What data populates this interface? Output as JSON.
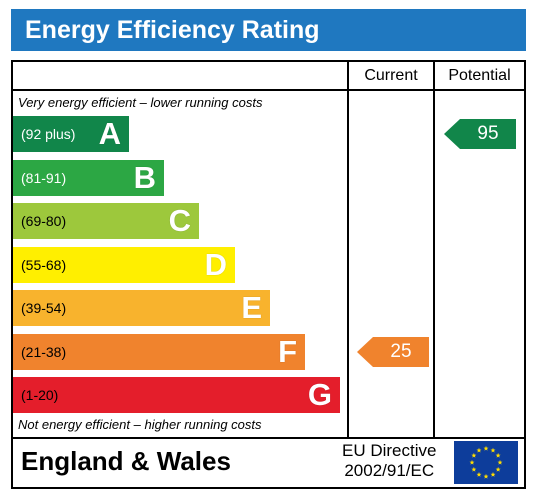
{
  "title": "Energy Efficiency Rating",
  "columns": {
    "current": "Current",
    "potential": "Potential"
  },
  "notes": {
    "top": "Very energy efficient – lower running costs",
    "bottom": "Not energy efficient – higher running costs"
  },
  "footer": {
    "region": "England & Wales",
    "directive_line1": "EU Directive",
    "directive_line2": "2002/91/EC",
    "flag_icon": "eu-flag-icon"
  },
  "colors": {
    "title_bar": "#1f78c0",
    "current_arrow": "#f0832d",
    "potential_arrow": "#11864a"
  },
  "chart_data": {
    "type": "bar",
    "categories": [
      "A",
      "B",
      "C",
      "D",
      "E",
      "F",
      "G"
    ],
    "bands": [
      {
        "letter": "A",
        "range": "(92 plus)",
        "min": 92,
        "max": null,
        "color": "#11864a",
        "range_color": "#ffffff"
      },
      {
        "letter": "B",
        "range": "(81-91)",
        "min": 81,
        "max": 91,
        "color": "#2ca744",
        "range_color": "#ffffff"
      },
      {
        "letter": "C",
        "range": "(69-80)",
        "min": 69,
        "max": 80,
        "color": "#9dc83c",
        "range_color": "#000000"
      },
      {
        "letter": "D",
        "range": "(55-68)",
        "min": 55,
        "max": 68,
        "color": "#ffef00",
        "range_color": "#000000"
      },
      {
        "letter": "E",
        "range": "(39-54)",
        "min": 39,
        "max": 54,
        "color": "#f8b32d",
        "range_color": "#000000"
      },
      {
        "letter": "F",
        "range": "(21-38)",
        "min": 21,
        "max": 38,
        "color": "#f0832d",
        "range_color": "#000000"
      },
      {
        "letter": "G",
        "range": "(1-20)",
        "min": 1,
        "max": 20,
        "color": "#e41e2b",
        "range_color": "#000000"
      }
    ],
    "series": [
      {
        "name": "Current",
        "value": 25,
        "band": "F"
      },
      {
        "name": "Potential",
        "value": 95,
        "band": "A"
      }
    ]
  }
}
